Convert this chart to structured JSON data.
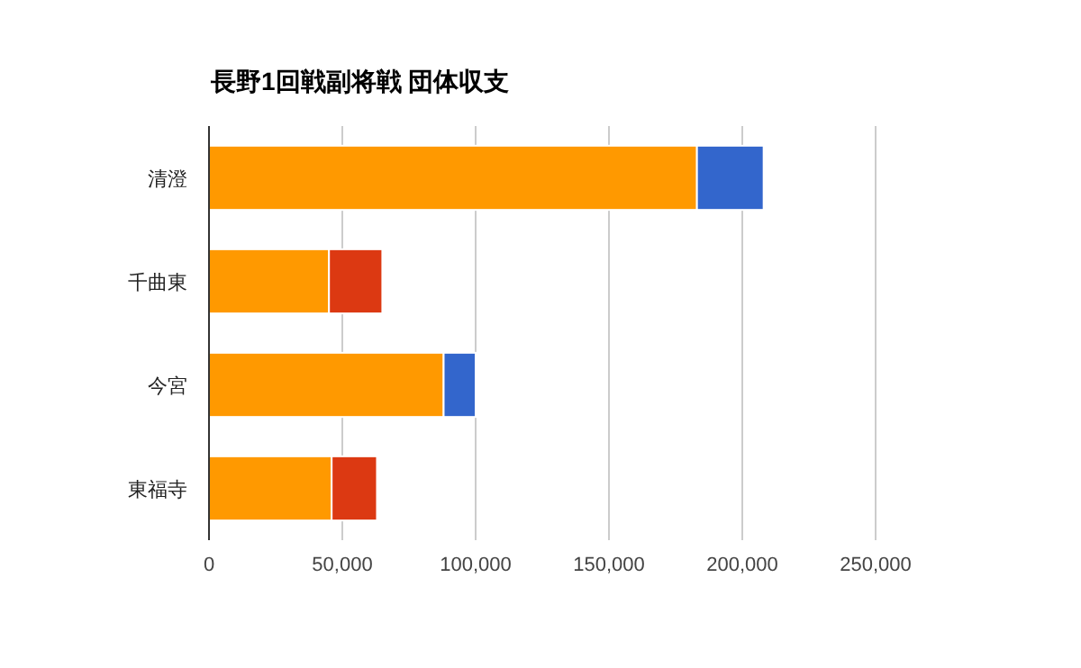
{
  "chart_data": {
    "type": "bar",
    "title": "長野1回戦副将戦 団体収支",
    "orientation": "horizontal",
    "stacked": true,
    "categories": [
      "清澄",
      "千曲東",
      "今宮",
      "東福寺"
    ],
    "series": [
      {
        "color": "#ff9900",
        "values": [
          183000,
          45000,
          88000,
          46000
        ]
      },
      {
        "color": "#3366cc",
        "values": [
          25000,
          null,
          12000,
          null
        ]
      },
      {
        "color": "#dc3912",
        "values": [
          null,
          20000,
          null,
          17000
        ]
      }
    ],
    "xlim": [
      0,
      250000
    ],
    "xticks": [
      0,
      {
        "value": 50000,
        "label": "50,000"
      },
      {
        "value": 100000,
        "label": "100,000"
      },
      {
        "value": 150000,
        "label": "150,000"
      },
      {
        "value": 200000,
        "label": "200,000"
      },
      {
        "value": 250000,
        "label": "250,000"
      }
    ],
    "grid": "x"
  }
}
